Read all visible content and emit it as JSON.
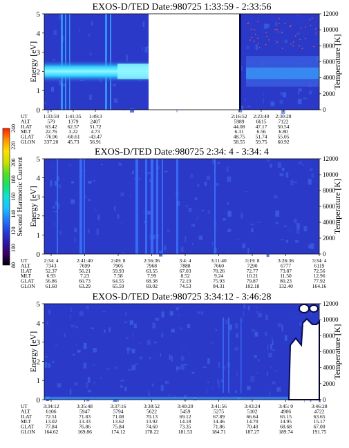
{
  "colors": {
    "background": "#2b39c8",
    "noise": "#3a5fe0",
    "bright_band": "#2fd0ff",
    "band_core": "#8ff7ff",
    "dark": "#070a4a",
    "gap": "#ffffff"
  },
  "colorbar": {
    "label": "Second Harmonic Current",
    "ticks": [
      "80",
      "100",
      "120",
      "140",
      "160",
      "180",
      "200",
      "220",
      "240"
    ],
    "colors": [
      "#000000",
      "#3a0068",
      "#2a1aa8",
      "#2240e0",
      "#1f7cff",
      "#19c2ff",
      "#10e0d8",
      "#18e06a",
      "#50e020",
      "#c8e000",
      "#ffe000",
      "#ff9000",
      "#ff2000"
    ]
  },
  "chart_data": [
    {
      "type": "heatmap",
      "title": "EXOS-D/TED   Date:980725  1:33:59 - 2:33:56",
      "ylabel": "Energy [eV]",
      "ylabel_right": "Temperature [K]",
      "ylim": [
        0,
        5
      ],
      "yticks": [
        "0",
        "1",
        "2",
        "3",
        "4",
        "5"
      ],
      "ylim_right": [
        0,
        12000
      ],
      "yticks_right": [
        "0",
        "2000",
        "4000",
        "6000",
        "8000",
        "10000",
        "12000"
      ],
      "data_gap": "between 1:49:3 and 2:16:52",
      "ephemeris": {
        "row_labels": [
          "UT",
          "ALT",
          "ILAT",
          "MLT",
          "GLAT",
          "GLON"
        ],
        "columns": [
          [
            "1:33:59",
            "579",
            "63.42",
            "22.76",
            "-76.96",
            "337.20"
          ],
          [
            "1:41:35",
            "1379",
            "62.57",
            "3.22",
            "-60.61",
            "45.73"
          ],
          [
            "1:49:3",
            "2407",
            "51.72",
            "4.73",
            "-43.47",
            "56.91"
          ],
          [
            "2:16:52",
            "5989",
            "44.08",
            "6.31",
            "48.75",
            "58.55"
          ],
          [
            "2:23:40",
            "6615",
            "47.17",
            "6.56",
            "51.74",
            "59.75"
          ],
          [
            "2:30:28",
            "7122",
            "50.54",
            "6.80",
            "55.05",
            "60.92"
          ]
        ]
      }
    },
    {
      "type": "heatmap",
      "title": "EXOS-D/TED   Date:980725  2:34: 4 - 3:34: 4",
      "ylabel": "Energy [eV]",
      "ylabel_right": "Temperature [K]",
      "ylim": [
        0,
        5
      ],
      "yticks": [
        "0",
        "1",
        "2",
        "3",
        "4",
        "5"
      ],
      "ylim_right": [
        0,
        12000
      ],
      "yticks_right": [
        "0",
        "2000",
        "4000",
        "6000",
        "8000",
        "10000",
        "12000"
      ],
      "ephemeris": {
        "row_labels": [
          "UT",
          "ALT",
          "ILAT",
          "MLT",
          "GLAT",
          "GLON"
        ],
        "columns": [
          [
            "2:34: 4",
            "7343",
            "52.37",
            "6.93",
            "56.86",
            "61.60"
          ],
          [
            "2:41:40",
            "7699",
            "56.21",
            "7.23",
            "60.73",
            "63.29"
          ],
          [
            "2:49: 8",
            "7905",
            "59.93",
            "7.58",
            "64.55",
            "65.59"
          ],
          [
            "2:56:36",
            "7968",
            "63.55",
            "7.99",
            "68.38",
            "69.02"
          ],
          [
            "3:4: 4",
            "7888",
            "67.03",
            "8.52",
            "72.19",
            "74.53"
          ],
          [
            "3:11:40",
            "7660",
            "70.26",
            "9.24",
            "75.93",
            "84.31"
          ],
          [
            "3:19: 8",
            "7290",
            "72.77",
            "10.21",
            "79.87",
            "102.18"
          ],
          [
            "3:26:36",
            "6777",
            "73.87",
            "11.50",
            "80.23",
            "132.40"
          ],
          [
            "3:34: 4",
            "6119",
            "72.56",
            "12.96",
            "77.92",
            "164.16"
          ]
        ]
      }
    },
    {
      "type": "heatmap",
      "title": "EXOS-D/TED   Date:980725  3:34:12 - 3:46:28",
      "ylabel": "Energy [eV]",
      "ylabel_right": "Temperature [K]",
      "ylim": [
        0,
        5
      ],
      "yticks": [
        "0",
        "1",
        "2",
        "3",
        "4",
        "5"
      ],
      "ylim_right": [
        0,
        12000
      ],
      "yticks_right": [
        "0",
        "2000",
        "4000",
        "6000",
        "8000",
        "10000",
        "12000"
      ],
      "ephemeris": {
        "row_labels": [
          "UT",
          "ALT",
          "ILAT",
          "MLT",
          "GLAT",
          "GLON"
        ],
        "columns": [
          [
            "3:34:12",
            "6106",
            "72.51",
            "13.02",
            "77.84",
            "164.62"
          ],
          [
            "3:35:48",
            "5947",
            "71.83",
            "13.33",
            "76.86",
            "169.86"
          ],
          [
            "3:37:16",
            "5794",
            "71.08",
            "13.62",
            "75.84",
            "174.12"
          ],
          [
            "3:38:52",
            "5622",
            "70.13",
            "13.92",
            "74.60",
            "178.22"
          ],
          [
            "3:40:20",
            "5459",
            "69.12",
            "14.18",
            "73.35",
            "181.53"
          ],
          [
            "3:41:56",
            "5275",
            "67.89",
            "14.46",
            "71.86",
            "184.71"
          ],
          [
            "3:43:24",
            "5102",
            "66.64",
            "14.70",
            "70.40",
            "187.27"
          ],
          [
            "3:45: 0",
            "4906",
            "65.15",
            "14.95",
            "68.68",
            "189.74"
          ],
          [
            "3:46:28",
            "4722",
            "63.65",
            "15.17",
            "67.00",
            "191.75"
          ]
        ]
      }
    }
  ]
}
